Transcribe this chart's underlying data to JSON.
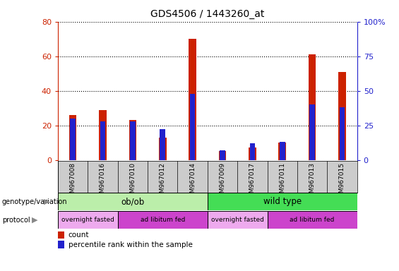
{
  "title": "GDS4506 / 1443260_at",
  "samples": [
    "GSM967008",
    "GSM967016",
    "GSM967010",
    "GSM967012",
    "GSM967014",
    "GSM967009",
    "GSM967017",
    "GSM967011",
    "GSM967013",
    "GSM967015"
  ],
  "count_values": [
    26,
    29,
    23,
    13,
    70,
    5,
    7,
    10,
    61,
    51
  ],
  "percentile_values": [
    30,
    28,
    28,
    22,
    48,
    7,
    12,
    13,
    40,
    38
  ],
  "bar_color_red": "#CC2200",
  "bar_color_blue": "#2222CC",
  "ylim_left": [
    0,
    80
  ],
  "ylim_right": [
    0,
    100
  ],
  "yticks_left": [
    0,
    20,
    40,
    60,
    80
  ],
  "yticks_right": [
    0,
    25,
    50,
    75,
    100
  ],
  "ytick_labels_right": [
    "0",
    "25",
    "50",
    "75",
    "100%"
  ],
  "genotype_groups": [
    {
      "label": "ob/ob",
      "start": 0,
      "end": 5,
      "color": "#BBEEAA"
    },
    {
      "label": "wild type",
      "start": 5,
      "end": 10,
      "color": "#44DD55"
    }
  ],
  "protocol_groups": [
    {
      "label": "overnight fasted",
      "start": 0,
      "end": 2,
      "color": "#EEAAEE"
    },
    {
      "label": "ad libitum fed",
      "start": 2,
      "end": 5,
      "color": "#CC44CC"
    },
    {
      "label": "overnight fasted",
      "start": 5,
      "end": 7,
      "color": "#EEAAEE"
    },
    {
      "label": "ad libitum fed",
      "start": 7,
      "end": 10,
      "color": "#CC44CC"
    }
  ],
  "legend_count_label": "count",
  "legend_percentile_label": "percentile rank within the sample",
  "left_axis_color": "#CC2200",
  "right_axis_color": "#2222CC",
  "background_color": "#FFFFFF",
  "red_bar_width": 0.25,
  "blue_bar_width": 0.18,
  "sample_label_bg": "#CCCCCC",
  "plot_bg": "#FFFFFF"
}
